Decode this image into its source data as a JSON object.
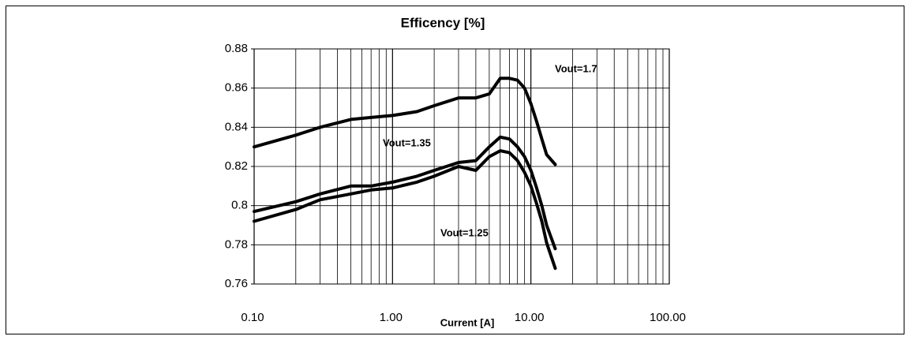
{
  "chart_data": {
    "type": "line",
    "title": "Efficency  [%]",
    "x_label": "Current [A]",
    "x_log": true,
    "grid": true,
    "x": [
      0.1,
      0.2,
      0.3,
      0.5,
      0.7,
      1,
      1.5,
      2,
      3,
      4,
      5,
      6,
      7,
      8,
      9,
      10,
      11,
      12,
      13,
      15
    ],
    "series": [
      {
        "name": "Vout=1.7",
        "color": "#000000",
        "values": [
          0.83,
          0.836,
          0.84,
          0.844,
          0.845,
          0.846,
          0.848,
          0.851,
          0.855,
          0.855,
          0.857,
          0.865,
          0.865,
          0.864,
          0.86,
          0.852,
          0.843,
          0.834,
          0.826,
          0.821
        ]
      },
      {
        "name": "Vout=1.35",
        "color": "#000000",
        "values": [
          0.797,
          0.802,
          0.806,
          0.81,
          0.81,
          0.812,
          0.815,
          0.818,
          0.822,
          0.823,
          0.83,
          0.835,
          0.834,
          0.83,
          0.825,
          0.818,
          0.809,
          0.8,
          0.79,
          0.778
        ]
      },
      {
        "name": "Vout=1.25",
        "color": "#000000",
        "values": [
          0.792,
          0.798,
          0.803,
          0.806,
          0.808,
          0.809,
          0.812,
          0.815,
          0.82,
          0.818,
          0.825,
          0.828,
          0.827,
          0.823,
          0.817,
          0.81,
          0.801,
          0.792,
          0.781,
          0.768
        ]
      }
    ],
    "xlim": [
      0.1,
      100
    ],
    "xticks": [
      {
        "value": 0.1,
        "label": "0.10"
      },
      {
        "value": 1,
        "label": "1.00"
      },
      {
        "value": 10,
        "label": "10.00"
      },
      {
        "value": 100,
        "label": "100.00"
      }
    ],
    "minor_xticks": [
      0.2,
      0.3,
      0.4,
      0.5,
      0.6,
      0.7,
      0.8,
      0.9,
      2,
      3,
      4,
      5,
      6,
      7,
      8,
      9,
      20,
      30,
      40,
      50,
      60,
      70,
      80,
      90
    ],
    "ylim": [
      0.76,
      0.88
    ],
    "yticks": [
      0.76,
      0.78,
      0.8,
      0.82,
      0.84,
      0.86,
      0.88
    ]
  }
}
